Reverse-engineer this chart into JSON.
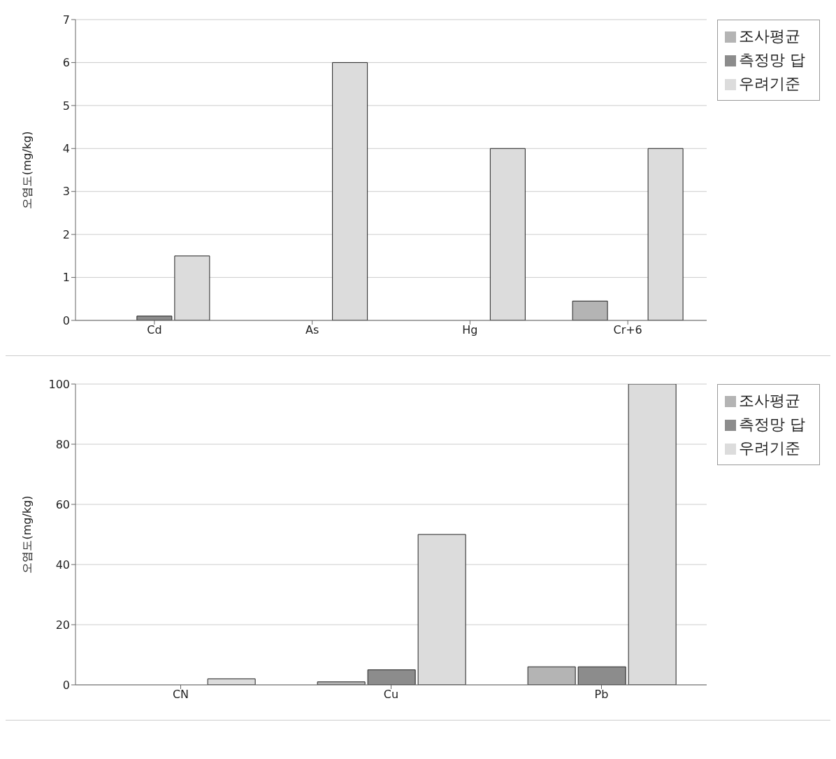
{
  "chart_data": [
    {
      "type": "bar",
      "ylabel": "오염도(mg/kg)",
      "categories": [
        "Cd",
        "As",
        "Hg",
        "Cr+6"
      ],
      "series": [
        {
          "name": "조사평균",
          "color": "#b4b4b4",
          "values": [
            0,
            0,
            0,
            0.45
          ]
        },
        {
          "name": "측정망 답",
          "color": "#8c8c8c",
          "values": [
            0.1,
            0,
            0,
            0
          ]
        },
        {
          "name": "우려기준",
          "color": "#dcdcdc",
          "values": [
            1.5,
            6,
            4,
            4
          ]
        }
      ],
      "ylim": [
        0,
        7
      ],
      "yticks": [
        0,
        1,
        2,
        3,
        4,
        5,
        6,
        7
      ],
      "grid": "y",
      "legend": "top right"
    },
    {
      "type": "bar",
      "ylabel": "오염도(mg/kg)",
      "categories": [
        "CN",
        "Cu",
        "Pb"
      ],
      "series": [
        {
          "name": "조사평균",
          "color": "#b4b4b4",
          "values": [
            0,
            1,
            6
          ]
        },
        {
          "name": "측정망 답",
          "color": "#8c8c8c",
          "values": [
            0,
            5,
            6
          ]
        },
        {
          "name": "우려기준",
          "color": "#dcdcdc",
          "values": [
            2,
            50,
            100
          ]
        }
      ],
      "ylim": [
        0,
        100
      ],
      "yticks": [
        0,
        20,
        40,
        60,
        80,
        100
      ],
      "grid": "y",
      "legend": "top right"
    }
  ]
}
